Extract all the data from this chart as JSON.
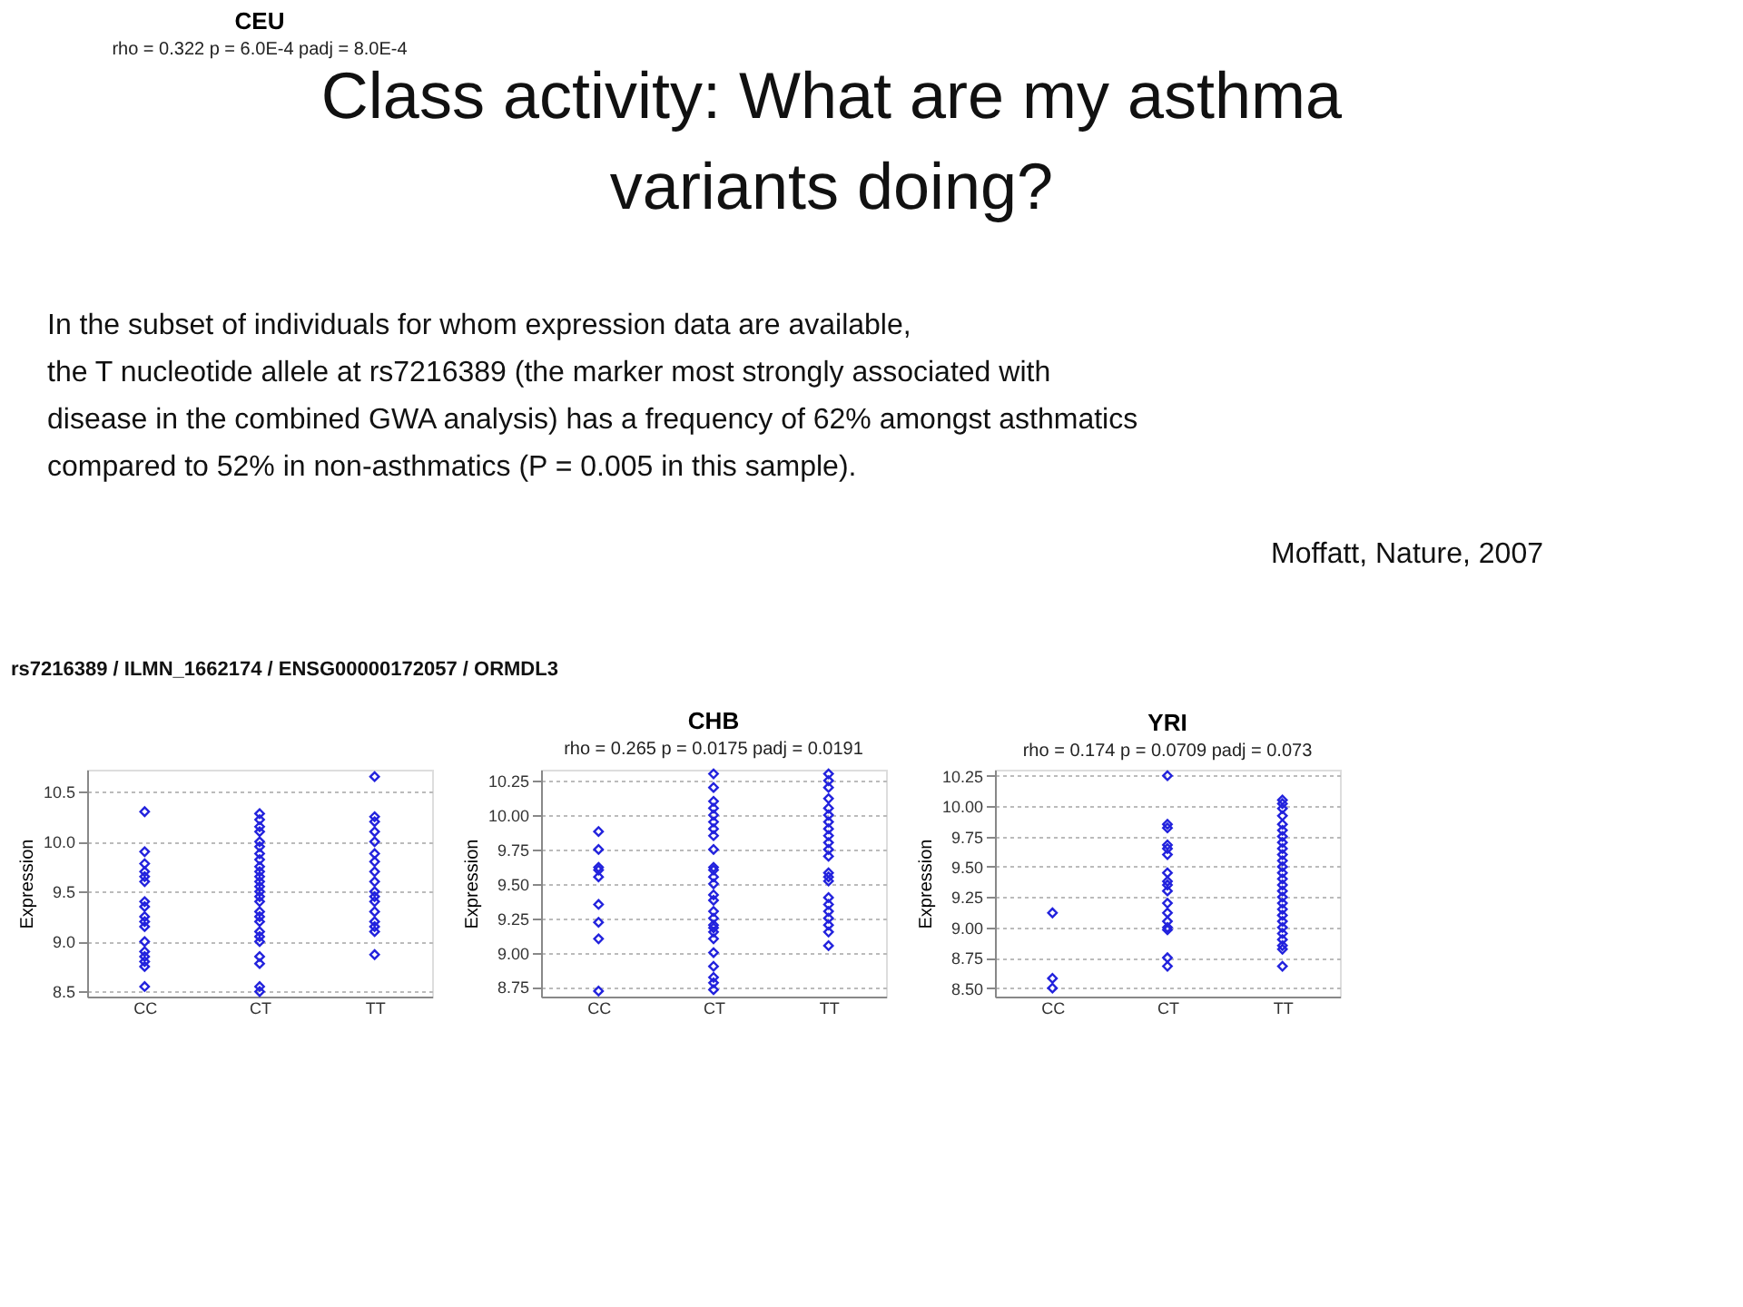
{
  "chart_data": [
    {
      "type": "scatter",
      "title": "CEU",
      "subtitle": "rho = 0.322   p = 6.0E-4   padj = 8.0E-4",
      "ylabel": "Expression",
      "annotations": [
        "Class activity: What are my asthma",
        "variants doing?",
        "In the subset of individuals for whom expression data are available,",
        "the T nucleotide allele at rs7216389  (the marker most strongly associated with",
        "disease in the combined GWA analysis) has a frequency of 62% amongst asthmatics",
        "compared to 52% in non-asthmatics (P = 0.005 in this sample).",
        "Moffatt, Nature, 2007",
        "rs7216389 / ILMN_1662174 / ENSG00000172057 / ORMDL3"
      ],
      "categories": [
        "CC",
        "CT",
        "TT"
      ],
      "series": [
        {
          "color": "#2222dd",
          "x": [
            "CC",
            "CC",
            "CC",
            "CC",
            "CC",
            "CC",
            "CC",
            "CC",
            "CC",
            "CC",
            "CC",
            "CC",
            "CC",
            "CC",
            "CC",
            "CC",
            "CC",
            "CT",
            "CT",
            "CT",
            "CT",
            "CT",
            "CT",
            "CT",
            "CT",
            "CT",
            "CT",
            "CT",
            "CT",
            "CT",
            "CT",
            "CT",
            "CT",
            "CT",
            "CT",
            "CT",
            "CT",
            "CT",
            "CT",
            "CT",
            "CT",
            "CT",
            "CT",
            "TT",
            "TT",
            "TT",
            "TT",
            "TT",
            "TT",
            "TT",
            "TT",
            "TT",
            "TT",
            "TT",
            "TT",
            "TT",
            "TT",
            "TT",
            "TT",
            "TT"
          ],
          "values": [
            10.3,
            9.9,
            9.78,
            9.7,
            9.65,
            9.6,
            9.4,
            9.35,
            9.25,
            9.2,
            9.15,
            9.0,
            8.9,
            8.85,
            8.8,
            8.75,
            8.55,
            10.28,
            10.22,
            10.15,
            10.1,
            10.0,
            9.95,
            9.88,
            9.82,
            9.75,
            9.7,
            9.65,
            9.6,
            9.55,
            9.5,
            9.45,
            9.4,
            9.3,
            9.25,
            9.2,
            9.1,
            9.05,
            9.0,
            8.85,
            8.78,
            8.55,
            8.5,
            10.65,
            10.25,
            10.2,
            10.1,
            10.0,
            9.88,
            9.8,
            9.7,
            9.6,
            9.5,
            9.45,
            9.4,
            9.3,
            9.2,
            9.15,
            9.1,
            8.87
          ]
        }
      ],
      "ylim": [
        8.45,
        10.72
      ],
      "yticks": [
        8.5,
        {
          "value": 9,
          "label": "9.0"
        },
        9.5,
        {
          "value": 10,
          "label": "10.0"
        },
        10.5
      ],
      "grid": "y",
      "marker": "diamond"
    },
    {
      "type": "scatter",
      "title": "CHB",
      "subtitle": "rho = 0.265   p = 0.0175   padj = 0.0191",
      "ylabel": "Expression",
      "categories": [
        "CC",
        "CT",
        "TT"
      ],
      "series": [
        {
          "color": "#2222dd",
          "x": [
            "CC",
            "CC",
            "CC",
            "CC",
            "CC",
            "CC",
            "CC",
            "CC",
            "CC",
            "CT",
            "CT",
            "CT",
            "CT",
            "CT",
            "CT",
            "CT",
            "CT",
            "CT",
            "CT",
            "CT",
            "CT",
            "CT",
            "CT",
            "CT",
            "CT",
            "CT",
            "CT",
            "CT",
            "CT",
            "CT",
            "CT",
            "CT",
            "CT",
            "CT",
            "CT",
            "TT",
            "TT",
            "TT",
            "TT",
            "TT",
            "TT",
            "TT",
            "TT",
            "TT",
            "TT",
            "TT",
            "TT",
            "TT",
            "TT",
            "TT",
            "TT",
            "TT",
            "TT",
            "TT",
            "TT",
            "TT",
            "TT"
          ],
          "values": [
            9.88,
            9.75,
            9.62,
            9.6,
            9.55,
            9.35,
            9.22,
            9.1,
            8.72,
            10.3,
            10.2,
            10.1,
            10.05,
            10.0,
            9.95,
            9.9,
            9.85,
            9.75,
            9.62,
            9.6,
            9.55,
            9.5,
            9.42,
            9.38,
            9.3,
            9.25,
            9.2,
            9.18,
            9.15,
            9.1,
            9.0,
            8.9,
            8.82,
            8.78,
            8.73,
            10.3,
            10.25,
            10.2,
            10.12,
            10.05,
            10.0,
            9.95,
            9.9,
            9.85,
            9.8,
            9.75,
            9.7,
            9.58,
            9.55,
            9.52,
            9.4,
            9.35,
            9.3,
            9.25,
            9.2,
            9.15,
            9.05
          ]
        }
      ],
      "ylim": [
        8.68,
        10.33
      ],
      "yticks": [
        8.75,
        {
          "value": 9,
          "label": "9.00"
        },
        9.25,
        {
          "value": 9.5,
          "label": "9.50"
        },
        9.75,
        {
          "value": 10,
          "label": "10.00"
        },
        10.25
      ],
      "grid": "y",
      "marker": "diamond"
    },
    {
      "type": "scatter",
      "title": "YRI",
      "subtitle": "rho = 0.174   p = 0.0709   padj = 0.073",
      "ylabel": "Expression",
      "categories": [
        "CC",
        "CT",
        "TT"
      ],
      "series": [
        {
          "color": "#2222dd",
          "x": [
            "CC",
            "CC",
            "CC",
            "CT",
            "CT",
            "CT",
            "CT",
            "CT",
            "CT",
            "CT",
            "CT",
            "CT",
            "CT",
            "CT",
            "CT",
            "CT",
            "CT",
            "CT",
            "CT",
            "CT",
            "TT",
            "TT",
            "TT",
            "TT",
            "TT",
            "TT",
            "TT",
            "TT",
            "TT",
            "TT",
            "TT",
            "TT",
            "TT",
            "TT",
            "TT",
            "TT",
            "TT",
            "TT",
            "TT",
            "TT",
            "TT",
            "TT",
            "TT",
            "TT",
            "TT",
            "TT",
            "TT"
          ],
          "values": [
            9.12,
            8.58,
            8.5,
            10.25,
            9.85,
            9.82,
            9.68,
            9.65,
            9.6,
            9.45,
            9.38,
            9.35,
            9.3,
            9.2,
            9.12,
            9.05,
            9.0,
            8.98,
            8.75,
            8.68,
            10.05,
            10.02,
            9.98,
            9.92,
            9.85,
            9.8,
            9.75,
            9.7,
            9.65,
            9.6,
            9.55,
            9.5,
            9.45,
            9.4,
            9.35,
            9.3,
            9.25,
            9.2,
            9.15,
            9.1,
            9.05,
            9.0,
            8.95,
            8.9,
            8.85,
            8.82,
            8.68
          ]
        }
      ],
      "ylim": [
        8.43,
        10.3
      ],
      "yticks": [
        {
          "value": 8.5,
          "label": "8.50"
        },
        8.75,
        {
          "value": 9,
          "label": "9.00"
        },
        9.25,
        {
          "value": 9.5,
          "label": "9.50"
        },
        9.75,
        {
          "value": 10,
          "label": "10.00"
        },
        10.25
      ],
      "grid": "y",
      "marker": "diamond"
    }
  ]
}
